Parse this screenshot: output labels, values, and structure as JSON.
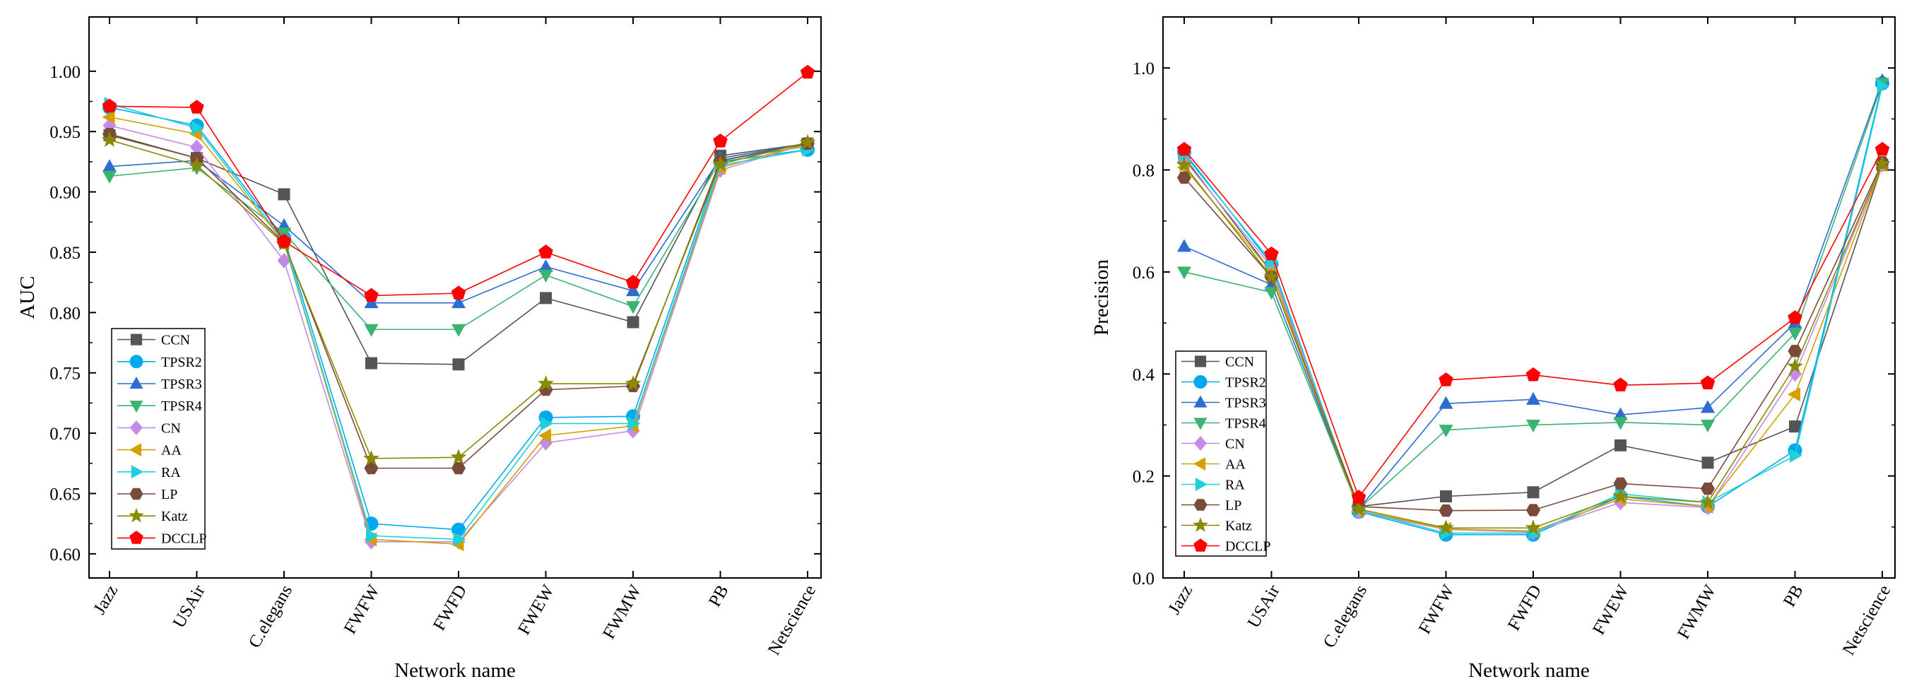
{
  "chart_data": [
    {
      "type": "line",
      "xlabel": "Network name",
      "ylabel": "AUC",
      "ylim": [
        0.58,
        1.045
      ],
      "yticks": [
        0.6,
        0.65,
        0.7,
        0.75,
        0.8,
        0.85,
        0.9,
        0.95,
        1.0
      ],
      "ytick_labels": [
        "0.60",
        "0.65",
        "0.70",
        "0.75",
        "0.80",
        "0.85",
        "0.90",
        "0.95",
        "1.00"
      ],
      "categories": [
        "Jazz",
        "USAir",
        "C.elegans",
        "FWFW",
        "FWFD",
        "FWEW",
        "FWMW",
        "PB",
        "Netscience"
      ],
      "legend_position": "bottom-left",
      "series": [
        {
          "name": "CCN",
          "values": [
            0.947,
            0.928,
            0.898,
            0.758,
            0.757,
            0.812,
            0.792,
            0.93,
            0.94
          ]
        },
        {
          "name": "TPSR2",
          "values": [
            0.97,
            0.955,
            0.862,
            0.625,
            0.62,
            0.713,
            0.714,
            0.925,
            0.935
          ]
        },
        {
          "name": "TPSR3",
          "values": [
            0.921,
            0.926,
            0.872,
            0.808,
            0.808,
            0.838,
            0.818,
            0.928,
            0.94
          ]
        },
        {
          "name": "TPSR4",
          "values": [
            0.913,
            0.92,
            0.866,
            0.786,
            0.786,
            0.831,
            0.805,
            0.926,
            0.938
          ]
        },
        {
          "name": "CN",
          "values": [
            0.955,
            0.937,
            0.843,
            0.61,
            0.61,
            0.692,
            0.702,
            0.918,
            0.94
          ]
        },
        {
          "name": "AA",
          "values": [
            0.962,
            0.948,
            0.858,
            0.612,
            0.608,
            0.698,
            0.706,
            0.92,
            0.94
          ]
        },
        {
          "name": "RA",
          "values": [
            0.973,
            0.953,
            0.859,
            0.615,
            0.612,
            0.708,
            0.708,
            0.922,
            0.935
          ]
        },
        {
          "name": "LP",
          "values": [
            0.948,
            0.928,
            0.858,
            0.671,
            0.671,
            0.736,
            0.739,
            0.926,
            0.94
          ]
        },
        {
          "name": "Katz",
          "values": [
            0.943,
            0.922,
            0.857,
            0.679,
            0.68,
            0.741,
            0.741,
            0.923,
            0.941
          ]
        },
        {
          "name": "DCCLP",
          "values": [
            0.971,
            0.97,
            0.859,
            0.814,
            0.816,
            0.85,
            0.825,
            0.942,
            0.999
          ]
        }
      ]
    },
    {
      "type": "line",
      "xlabel": "Network name",
      "ylabel": "Precision",
      "ylim": [
        0.0,
        1.1
      ],
      "yticks": [
        0.0,
        0.2,
        0.4,
        0.6,
        0.8,
        1.0
      ],
      "ytick_labels": [
        "0.0",
        "0.2",
        "0.4",
        "0.6",
        "0.8",
        "1.0"
      ],
      "categories": [
        "Jazz",
        "USAir",
        "C.elegans",
        "FWFW",
        "FWFD",
        "FWEW",
        "FWMW",
        "PB",
        "Netscience"
      ],
      "legend_position": "bottom-left",
      "series": [
        {
          "name": "CCN",
          "values": [
            0.825,
            0.6,
            0.14,
            0.16,
            0.168,
            0.26,
            0.226,
            0.297,
            0.81
          ]
        },
        {
          "name": "TPSR2",
          "values": [
            0.835,
            0.615,
            0.13,
            0.085,
            0.085,
            0.16,
            0.14,
            0.25,
            0.97
          ]
        },
        {
          "name": "TPSR3",
          "values": [
            0.65,
            0.575,
            0.135,
            0.342,
            0.35,
            0.32,
            0.334,
            0.5,
            0.975
          ]
        },
        {
          "name": "TPSR4",
          "values": [
            0.6,
            0.56,
            0.135,
            0.29,
            0.3,
            0.305,
            0.3,
            0.48,
            0.97
          ]
        },
        {
          "name": "CN",
          "values": [
            0.82,
            0.61,
            0.13,
            0.095,
            0.09,
            0.148,
            0.138,
            0.4,
            0.81
          ]
        },
        {
          "name": "AA",
          "values": [
            0.805,
            0.6,
            0.132,
            0.096,
            0.092,
            0.155,
            0.14,
            0.36,
            0.81
          ]
        },
        {
          "name": "RA",
          "values": [
            0.83,
            0.62,
            0.133,
            0.088,
            0.088,
            0.165,
            0.148,
            0.24,
            0.965
          ]
        },
        {
          "name": "LP",
          "values": [
            0.785,
            0.59,
            0.14,
            0.132,
            0.133,
            0.185,
            0.175,
            0.445,
            0.815
          ]
        },
        {
          "name": "Katz",
          "values": [
            0.81,
            0.59,
            0.135,
            0.098,
            0.098,
            0.16,
            0.148,
            0.415,
            0.812
          ]
        },
        {
          "name": "DCCLP",
          "values": [
            0.84,
            0.635,
            0.158,
            0.388,
            0.398,
            0.378,
            0.382,
            0.51,
            0.84
          ]
        }
      ]
    }
  ],
  "styles": {
    "CCN": {
      "color": "#555555",
      "marker": "square"
    },
    "TPSR2": {
      "color": "#00a8f0",
      "marker": "circle"
    },
    "TPSR3": {
      "color": "#2d6cd0",
      "marker": "triangle-up"
    },
    "TPSR4": {
      "color": "#3cb371",
      "marker": "triangle-down"
    },
    "CN": {
      "color": "#c48ae8",
      "marker": "diamond"
    },
    "AA": {
      "color": "#d4a000",
      "marker": "triangle-left"
    },
    "RA": {
      "color": "#20d0d8",
      "marker": "triangle-right"
    },
    "LP": {
      "color": "#7a4a3a",
      "marker": "hexagon"
    },
    "Katz": {
      "color": "#8a8a00",
      "marker": "star"
    },
    "DCCLP": {
      "color": "#ff0000",
      "marker": "pentagon"
    }
  }
}
